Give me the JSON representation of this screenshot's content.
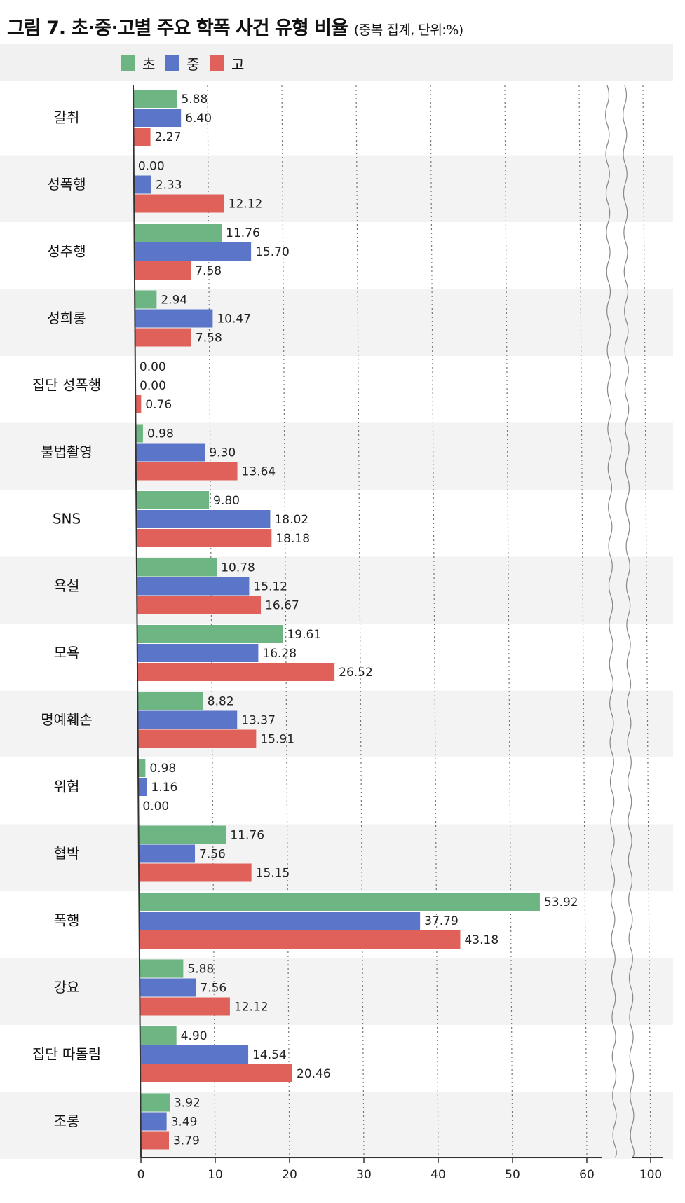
{
  "header": {
    "title": "그림 7. 초·중·고별 주요 학폭 사건 유형 비율",
    "subtitle": "(중복 집계, 단위:%)"
  },
  "chart_data": {
    "type": "bar",
    "orientation": "horizontal",
    "title": "그림 7. 초·중·고별 주요 학폭 사건 유형 비율",
    "subtitle": "(중복 집계, 단위:%)",
    "categories": [
      "갈취",
      "성폭행",
      "성추행",
      "성희롱",
      "집단 성폭행",
      "불법촬영",
      "SNS",
      "욕설",
      "모욕",
      "명예훼손",
      "위협",
      "협박",
      "폭행",
      "강요",
      "집단 따돌림",
      "조롱"
    ],
    "series": [
      {
        "name": "초",
        "color": "#6db582",
        "values": [
          5.88,
          0.0,
          11.76,
          2.94,
          0.0,
          0.98,
          9.8,
          10.78,
          19.61,
          8.82,
          0.98,
          11.76,
          53.92,
          5.88,
          4.9,
          3.92
        ]
      },
      {
        "name": "중",
        "color": "#5b75c9",
        "values": [
          6.4,
          2.33,
          15.7,
          10.47,
          0.0,
          9.3,
          18.02,
          15.12,
          16.28,
          13.37,
          1.16,
          7.56,
          37.79,
          7.56,
          14.54,
          3.49
        ]
      },
      {
        "name": "고",
        "color": "#e0605a",
        "values": [
          2.27,
          12.12,
          7.58,
          7.58,
          0.76,
          13.64,
          18.18,
          16.67,
          26.52,
          15.91,
          0.0,
          15.15,
          43.18,
          12.12,
          20.46,
          3.79
        ]
      }
    ],
    "value_labels": [
      [
        "5.88",
        "0.00",
        "11.76",
        "2.94",
        "0.00",
        "0.98",
        "9.80",
        "10.78",
        "19.61",
        "8.82",
        "0.98",
        "11.76",
        "53.92",
        "5.88",
        "4.90",
        "3.92"
      ],
      [
        "6.40",
        "2.33",
        "15.70",
        "10.47",
        "0.00",
        "9.30",
        "18.02",
        "15.12",
        "16.28",
        "13.37",
        "1.16",
        "7.56",
        "37.79",
        "7.56",
        "14.54",
        "3.49"
      ],
      [
        "2.27",
        "12.12",
        "7.58",
        "7.58",
        "0.76",
        "13.64",
        "18.18",
        "16.67",
        "26.52",
        "15.91",
        "0.00",
        "15.15",
        "43.18",
        "12.12",
        "20.46",
        "3.79"
      ]
    ],
    "xticks": [
      0,
      10,
      20,
      30,
      40,
      50,
      60,
      100
    ],
    "xtick_labels": [
      "0",
      "10",
      "20",
      "30",
      "40",
      "50",
      "60",
      "100"
    ],
    "xlim": [
      0,
      100
    ],
    "axis_break": {
      "from": 62,
      "to": 98
    },
    "grid": "vertical dotted",
    "legend_position": "top-left",
    "band_colors": [
      "#ffffff",
      "#f3f3f3"
    ]
  }
}
